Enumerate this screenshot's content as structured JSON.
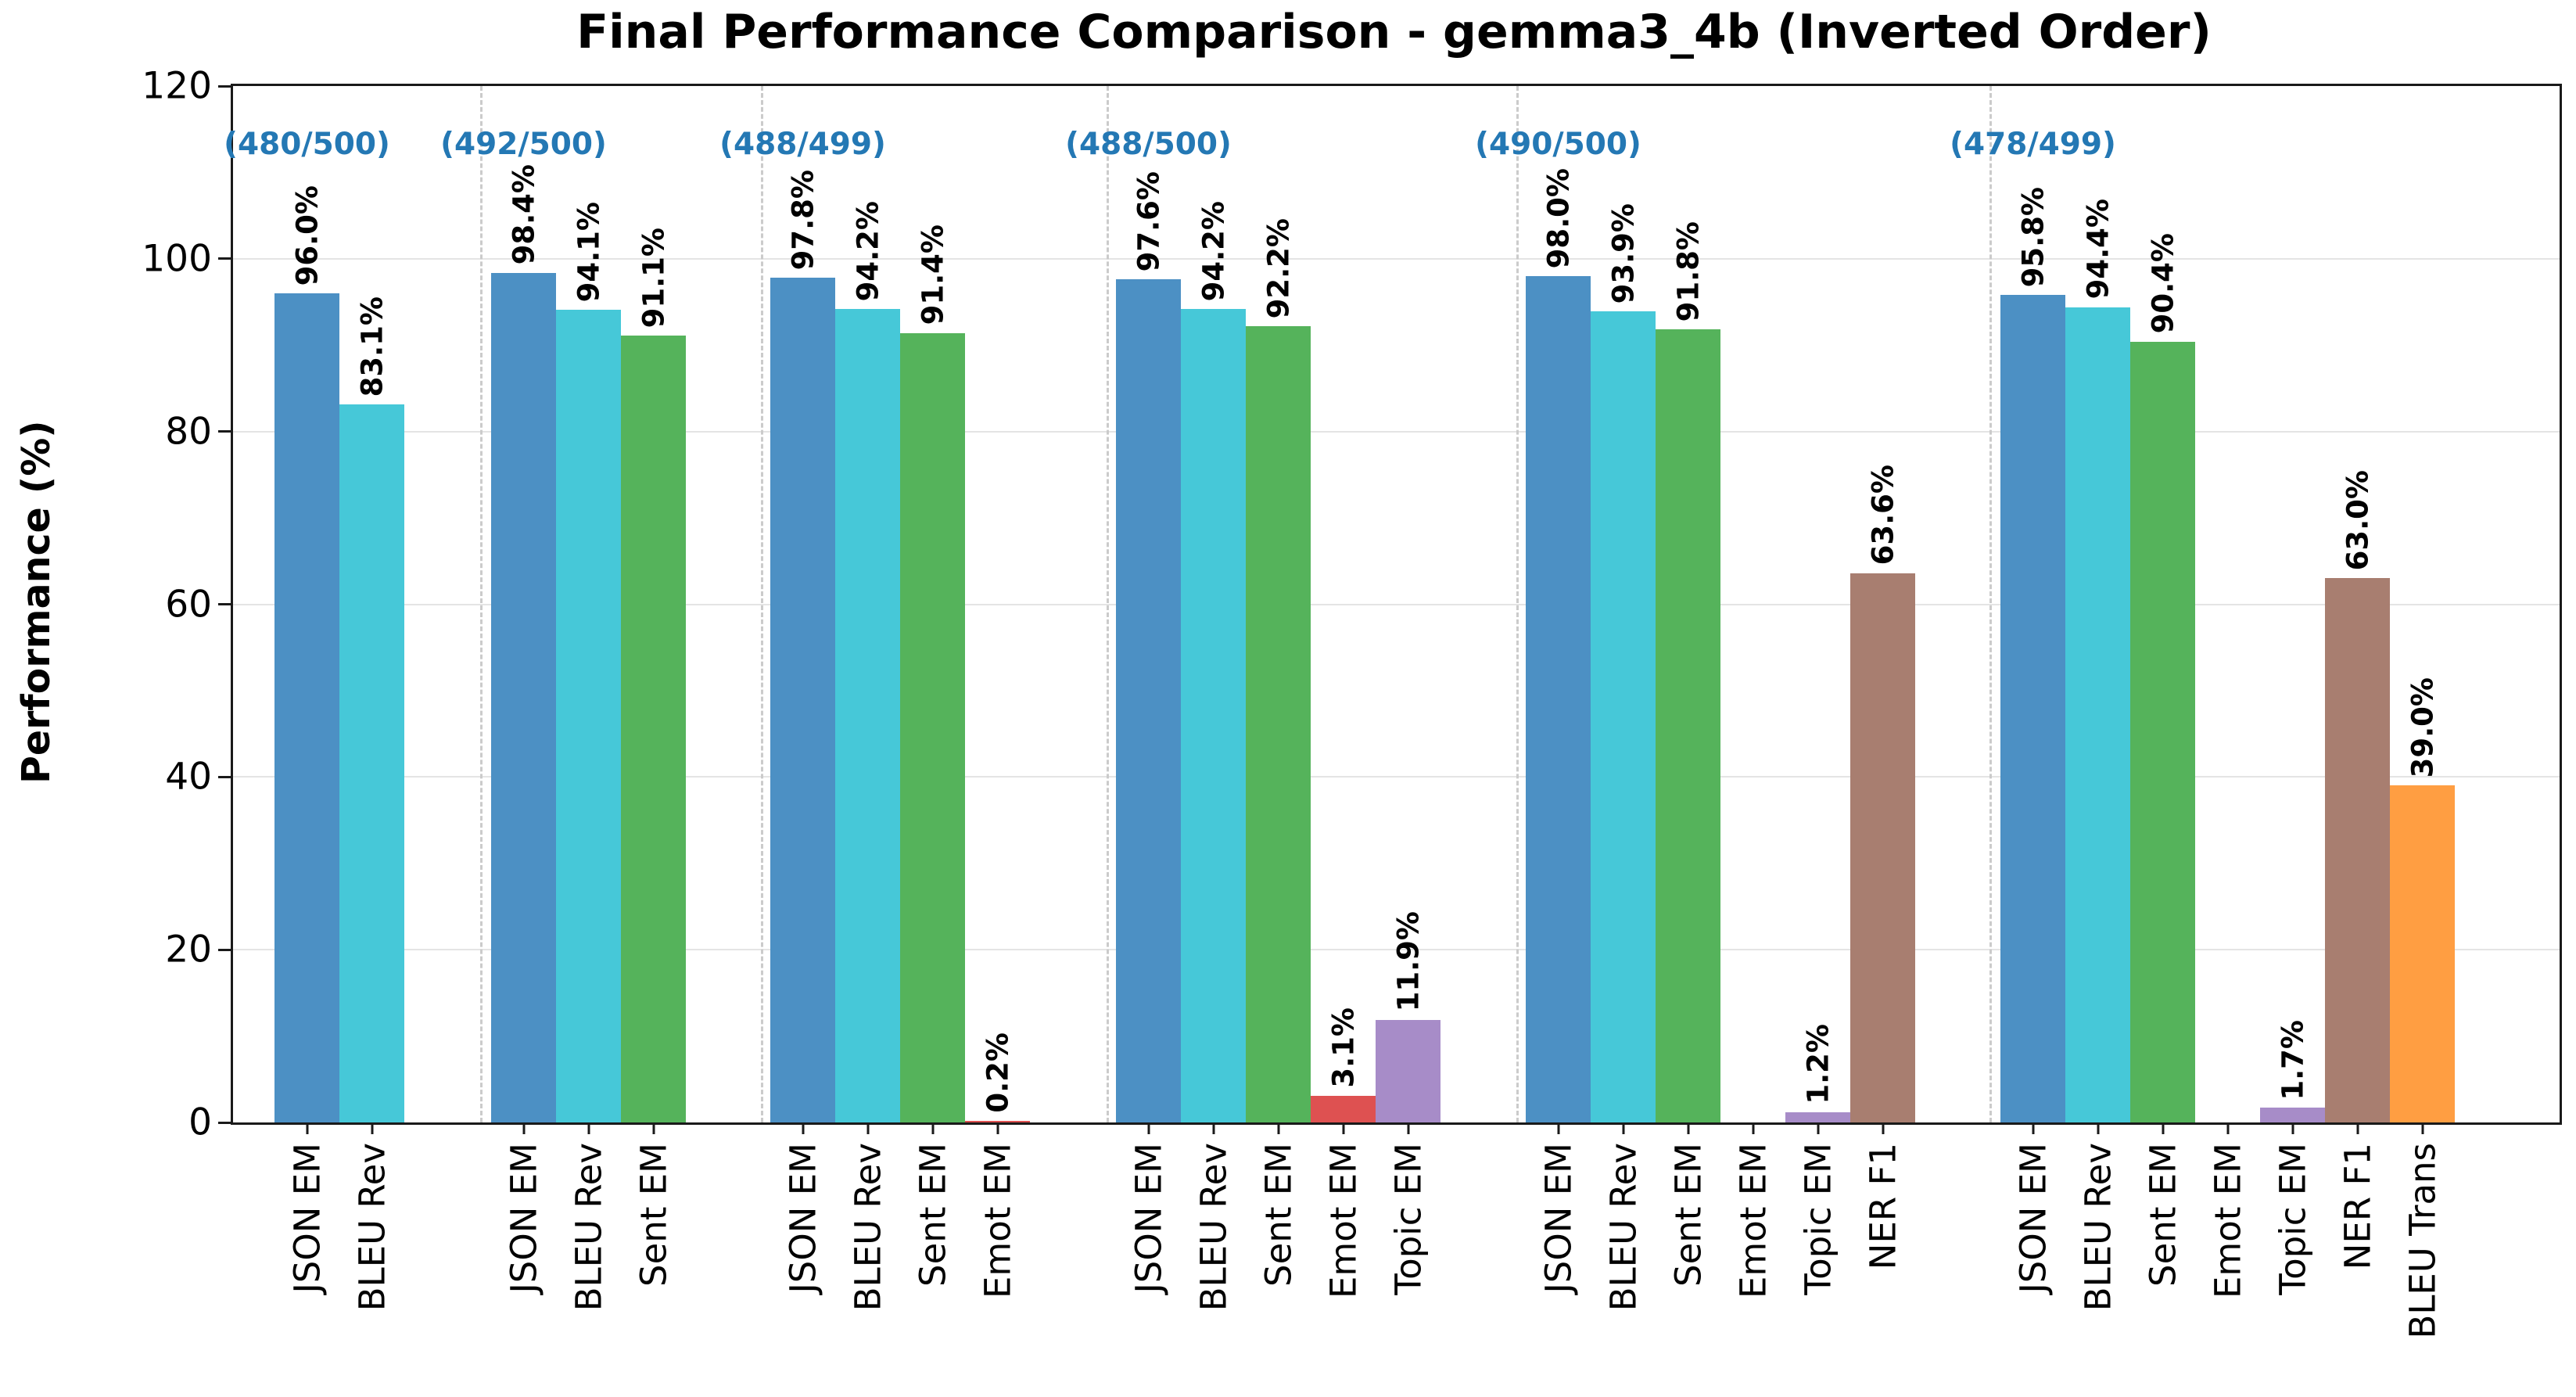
{
  "chart_data": {
    "type": "bar",
    "title": "Final Performance Comparison - gemma3_4b (Inverted Order)",
    "ylabel": "Performance (%)",
    "ylim": [
      0,
      120
    ],
    "yticks": [
      0,
      20,
      40,
      60,
      80,
      100,
      120
    ],
    "grid": "horizontal",
    "legend_position": "none",
    "annotation_color": "#2478b4",
    "metric_colors": {
      "JSON EM": "#4c90c4",
      "BLEU Rev": "#46c8d8",
      "Sent EM": "#55b35b",
      "Emot EM": "#de5151",
      "Topic EM": "#a78cc8",
      "NER F1": "#a87e70",
      "BLEU Trans": "#ff9e42"
    },
    "groups": [
      {
        "annotation": "(480/500)",
        "bars": [
          {
            "metric": "JSON EM",
            "value": 96.0,
            "value_label": "96.0%"
          },
          {
            "metric": "BLEU Rev",
            "value": 83.1,
            "value_label": "83.1%"
          }
        ]
      },
      {
        "annotation": "(492/500)",
        "bars": [
          {
            "metric": "JSON EM",
            "value": 98.4,
            "value_label": "98.4%"
          },
          {
            "metric": "BLEU Rev",
            "value": 94.1,
            "value_label": "94.1%"
          },
          {
            "metric": "Sent EM",
            "value": 91.1,
            "value_label": "91.1%"
          }
        ]
      },
      {
        "annotation": "(488/499)",
        "bars": [
          {
            "metric": "JSON EM",
            "value": 97.8,
            "value_label": "97.8%"
          },
          {
            "metric": "BLEU Rev",
            "value": 94.2,
            "value_label": "94.2%"
          },
          {
            "metric": "Sent EM",
            "value": 91.4,
            "value_label": "91.4%"
          },
          {
            "metric": "Emot EM",
            "value": 0.2,
            "value_label": "0.2%"
          }
        ]
      },
      {
        "annotation": "(488/500)",
        "bars": [
          {
            "metric": "JSON EM",
            "value": 97.6,
            "value_label": "97.6%"
          },
          {
            "metric": "BLEU Rev",
            "value": 94.2,
            "value_label": "94.2%"
          },
          {
            "metric": "Sent EM",
            "value": 92.2,
            "value_label": "92.2%"
          },
          {
            "metric": "Emot EM",
            "value": 3.1,
            "value_label": "3.1%"
          },
          {
            "metric": "Topic EM",
            "value": 11.9,
            "value_label": "11.9%"
          }
        ]
      },
      {
        "annotation": "(490/500)",
        "bars": [
          {
            "metric": "JSON EM",
            "value": 98.0,
            "value_label": "98.0%"
          },
          {
            "metric": "BLEU Rev",
            "value": 93.9,
            "value_label": "93.9%"
          },
          {
            "metric": "Sent EM",
            "value": 91.8,
            "value_label": "91.8%"
          },
          {
            "metric": "Emot EM",
            "value": 0.0,
            "value_label": ""
          },
          {
            "metric": "Topic EM",
            "value": 1.2,
            "value_label": "1.2%"
          },
          {
            "metric": "NER F1",
            "value": 63.6,
            "value_label": "63.6%"
          }
        ]
      },
      {
        "annotation": "(478/499)",
        "bars": [
          {
            "metric": "JSON EM",
            "value": 95.8,
            "value_label": "95.8%"
          },
          {
            "metric": "BLEU Rev",
            "value": 94.4,
            "value_label": "94.4%"
          },
          {
            "metric": "Sent EM",
            "value": 90.4,
            "value_label": "90.4%"
          },
          {
            "metric": "Emot EM",
            "value": 0.0,
            "value_label": ""
          },
          {
            "metric": "Topic EM",
            "value": 1.7,
            "value_label": "1.7%"
          },
          {
            "metric": "NER F1",
            "value": 63.0,
            "value_label": "63.0%"
          },
          {
            "metric": "BLEU Trans",
            "value": 39.0,
            "value_label": "39.0%"
          }
        ]
      }
    ]
  }
}
